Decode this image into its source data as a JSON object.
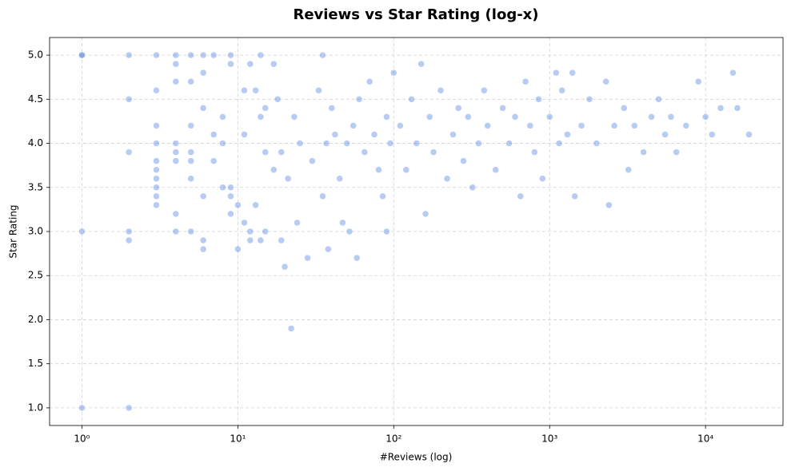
{
  "chart_data": {
    "type": "scatter",
    "title": "Reviews vs Star Rating (log-x)",
    "x_label": "#Reviews (log)",
    "y_label": "Star Rating",
    "x_scale": "log",
    "grid": true,
    "color": "#4a7de0",
    "alpha": 0.4,
    "xlim": [
      0.62,
      31400
    ],
    "ylim": [
      0.8,
      5.2
    ],
    "xticks": [
      {
        "value": 1,
        "label": "10⁰"
      },
      {
        "value": 10,
        "label": "10¹"
      },
      {
        "value": 100,
        "label": "10²"
      },
      {
        "value": 1000,
        "label": "10³"
      },
      {
        "value": 10000,
        "label": "10⁴"
      }
    ],
    "yticks": [
      {
        "value": 1,
        "label": "1.0"
      },
      1.5,
      {
        "value": 2,
        "label": "2.0"
      },
      2.5,
      {
        "value": 3,
        "label": "3.0"
      },
      3.5,
      {
        "value": 4,
        "label": "4.0"
      },
      4.5,
      {
        "value": 5,
        "label": "5.0"
      }
    ],
    "x": [
      1,
      1,
      1,
      1,
      2,
      2,
      2,
      2,
      2,
      2,
      3,
      3,
      3,
      3,
      3,
      3,
      3,
      3,
      3,
      3,
      4,
      4,
      4,
      4,
      4,
      4,
      4,
      4,
      5,
      5,
      5,
      5,
      5,
      5,
      5,
      6,
      6,
      6,
      6,
      6,
      6,
      7,
      7,
      7,
      8,
      8,
      8,
      9,
      9,
      9,
      9,
      9,
      10,
      10,
      11,
      11,
      11,
      12,
      12,
      12,
      13,
      13,
      14,
      14,
      14,
      15,
      15,
      15,
      17,
      17,
      18,
      19,
      19,
      20,
      21,
      22,
      23,
      24,
      25,
      28,
      30,
      33,
      35,
      35,
      37,
      38,
      40,
      42,
      45,
      47,
      50,
      52,
      55,
      58,
      60,
      65,
      70,
      75,
      80,
      85,
      90,
      90,
      95,
      100,
      110,
      120,
      130,
      140,
      150,
      160,
      170,
      180,
      200,
      220,
      240,
      260,
      280,
      300,
      320,
      350,
      380,
      400,
      450,
      500,
      550,
      600,
      650,
      700,
      750,
      800,
      850,
      900,
      1000,
      1100,
      1150,
      1200,
      1300,
      1400,
      1450,
      1600,
      1800,
      2000,
      2300,
      2400,
      2600,
      3000,
      3200,
      3500,
      4000,
      4500,
      5000,
      5500,
      6000,
      6500,
      7500,
      9000,
      10000,
      11000,
      12500,
      15000,
      16000,
      19000
    ],
    "values": [
      5.0,
      5.0,
      3.0,
      1.0,
      5.0,
      4.5,
      3.9,
      3.0,
      2.9,
      1.0,
      5.0,
      4.6,
      4.2,
      4.0,
      3.8,
      3.7,
      3.6,
      3.5,
      3.4,
      3.3,
      5.0,
      4.9,
      4.7,
      4.0,
      3.9,
      3.8,
      3.2,
      3.0,
      5.0,
      4.7,
      4.2,
      3.9,
      3.8,
      3.6,
      3.0,
      5.0,
      4.8,
      4.4,
      3.4,
      2.9,
      2.8,
      5.0,
      3.8,
      4.1,
      4.3,
      4.0,
      3.5,
      5.0,
      4.9,
      3.5,
      3.4,
      3.2,
      3.3,
      2.8,
      4.6,
      4.1,
      3.1,
      4.9,
      3.0,
      2.9,
      4.6,
      3.3,
      5.0,
      4.3,
      2.9,
      4.4,
      3.9,
      3.0,
      4.9,
      3.7,
      4.5,
      3.9,
      2.9,
      2.6,
      3.6,
      1.9,
      4.3,
      3.1,
      4.0,
      2.7,
      3.8,
      4.6,
      5.0,
      3.4,
      4.0,
      2.8,
      4.4,
      4.1,
      3.6,
      3.1,
      4.0,
      3.0,
      4.2,
      2.7,
      4.5,
      3.9,
      4.7,
      4.1,
      3.7,
      3.4,
      4.3,
      3.0,
      4.0,
      4.8,
      4.2,
      3.7,
      4.5,
      4.0,
      4.9,
      3.2,
      4.3,
      3.9,
      4.6,
      3.6,
      4.1,
      4.4,
      3.8,
      4.3,
      3.5,
      4.0,
      4.6,
      4.2,
      3.7,
      4.4,
      4.0,
      4.3,
      3.4,
      4.7,
      4.2,
      3.9,
      4.5,
      3.6,
      4.3,
      4.8,
      4.0,
      4.6,
      4.1,
      4.8,
      3.4,
      4.2,
      4.5,
      4.0,
      4.7,
      3.3,
      4.2,
      4.4,
      3.7,
      4.2,
      3.9,
      4.3,
      4.5,
      4.1,
      4.3,
      3.9,
      4.2,
      4.7,
      4.3,
      4.1,
      4.4,
      4.8,
      4.4,
      4.1
    ]
  }
}
